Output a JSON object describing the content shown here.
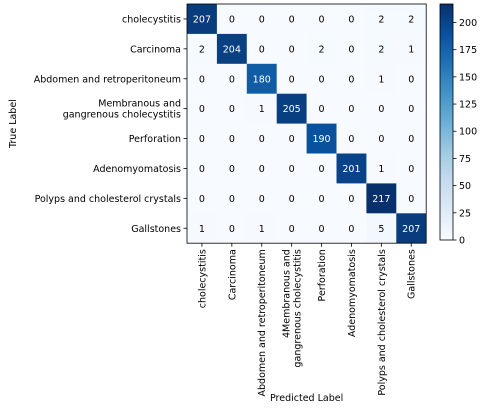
{
  "chart_data": {
    "type": "heatmap",
    "title": "",
    "xlabel": "Predicted Label",
    "ylabel": "True Label",
    "row_labels": [
      [
        "cholecystitis"
      ],
      [
        "Carcinoma"
      ],
      [
        "Abdomen and retroperitoneum"
      ],
      [
        "Membranous and",
        "gangrenous cholecystitis"
      ],
      [
        "Perforation"
      ],
      [
        "Adenomyomatosis"
      ],
      [
        "Polyps and cholesterol crystals"
      ],
      [
        "Gallstones"
      ]
    ],
    "col_labels": [
      [
        "cholecystitis"
      ],
      [
        "Carcinoma"
      ],
      [
        "Abdomen and retroperitoneum"
      ],
      [
        "4Membranous and",
        "gangrenous cholecystitis"
      ],
      [
        "Perforation"
      ],
      [
        "Adenomyomatosis"
      ],
      [
        "Polyps and cholesterol crystals"
      ],
      [
        "Gallstones"
      ]
    ],
    "matrix": [
      [
        207,
        0,
        0,
        0,
        0,
        0,
        2,
        2
      ],
      [
        2,
        204,
        0,
        0,
        2,
        0,
        2,
        1
      ],
      [
        0,
        0,
        180,
        0,
        0,
        0,
        1,
        0
      ],
      [
        0,
        0,
        1,
        205,
        0,
        0,
        0,
        0
      ],
      [
        0,
        0,
        0,
        0,
        190,
        0,
        0,
        0
      ],
      [
        0,
        0,
        0,
        0,
        0,
        201,
        1,
        0
      ],
      [
        0,
        0,
        0,
        0,
        0,
        0,
        217,
        0
      ],
      [
        1,
        0,
        1,
        0,
        0,
        0,
        5,
        207
      ]
    ],
    "colorbar": {
      "min": 0,
      "max": 217,
      "ticks": [
        0,
        25,
        50,
        75,
        100,
        125,
        150,
        175,
        200
      ],
      "colormap": "Blues"
    },
    "grid": false,
    "colorbar_placement": "right"
  }
}
